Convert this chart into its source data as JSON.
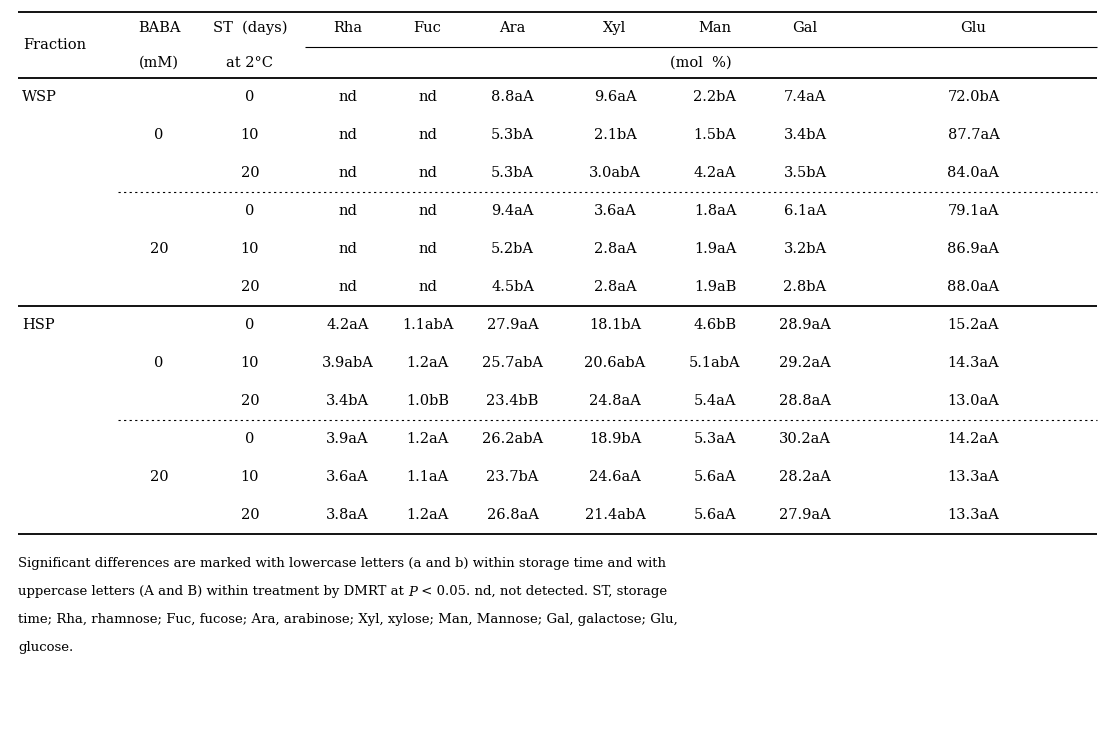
{
  "rows": [
    [
      "WSP",
      "0",
      "0",
      "nd",
      "nd",
      "8.8aA",
      "9.6aA",
      "2.2bA",
      "7.4aA",
      "72.0bA"
    ],
    [
      "",
      "",
      "10",
      "nd",
      "nd",
      "5.3bA",
      "2.1bA",
      "1.5bA",
      "3.4bA",
      "87.7aA"
    ],
    [
      "",
      "",
      "20",
      "nd",
      "nd",
      "5.3bA",
      "3.0abA",
      "4.2aA",
      "3.5bA",
      "84.0aA"
    ],
    [
      "",
      "20",
      "0",
      "nd",
      "nd",
      "9.4aA",
      "3.6aA",
      "1.8aA",
      "6.1aA",
      "79.1aA"
    ],
    [
      "",
      "",
      "10",
      "nd",
      "nd",
      "5.2bA",
      "2.8aA",
      "1.9aA",
      "3.2bA",
      "86.9aA"
    ],
    [
      "",
      "",
      "20",
      "nd",
      "nd",
      "4.5bA",
      "2.8aA",
      "1.9aB",
      "2.8bA",
      "88.0aA"
    ],
    [
      "HSP",
      "0",
      "0",
      "4.2aA",
      "1.1abA",
      "27.9aA",
      "18.1bA",
      "4.6bB",
      "28.9aA",
      "15.2aA"
    ],
    [
      "",
      "",
      "10",
      "3.9abA",
      "1.2aA",
      "25.7abA",
      "20.6abA",
      "5.1abA",
      "29.2aA",
      "14.3aA"
    ],
    [
      "",
      "",
      "20",
      "3.4bA",
      "1.0bB",
      "23.4bB",
      "24.8aA",
      "5.4aA",
      "28.8aA",
      "13.0aA"
    ],
    [
      "",
      "20",
      "0",
      "3.9aA",
      "1.2aA",
      "26.2abA",
      "18.9bA",
      "5.3aA",
      "30.2aA",
      "14.2aA"
    ],
    [
      "",
      "",
      "10",
      "3.6aA",
      "1.1aA",
      "23.7bA",
      "24.6aA",
      "5.6aA",
      "28.2aA",
      "13.3aA"
    ],
    [
      "",
      "",
      "20",
      "3.8aA",
      "1.2aA",
      "26.8aA",
      "21.4abA",
      "5.6aA",
      "27.9aA",
      "13.3aA"
    ]
  ],
  "col_headers_line1": [
    "Fraction",
    "BABA",
    "ST (days)",
    "Rha",
    "Fuc",
    "Ara",
    "Xyl",
    "Man",
    "Gal",
    "Glu"
  ],
  "col_headers_line2": [
    "",
    "(mM)",
    "at 2°C",
    "",
    "",
    "",
    "(mol  %)",
    "",
    "",
    ""
  ],
  "footnote_parts": [
    {
      "text": "Significant differences are marked with lowercase letters (a and b) within storage time and with",
      "italic": false
    },
    {
      "text": "\nuppercase letters (A and B) within treatment by DMRT at ",
      "italic": false
    },
    {
      "text": "P",
      "italic": true
    },
    {
      "text": " < 0.05. nd, not detected. ST, storage\ntime; Rha, rhamnose; Fuc, fucose; Ara, arabinose; Xyl, xylose; Man, Mannose; Gal, galactose; Glu,\nglucose.",
      "italic": false
    }
  ],
  "font_size": 10.5,
  "footnote_font_size": 9.5
}
